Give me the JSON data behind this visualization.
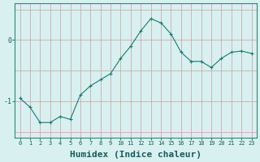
{
  "x": [
    0,
    1,
    2,
    3,
    4,
    5,
    6,
    7,
    8,
    9,
    10,
    11,
    12,
    13,
    14,
    15,
    16,
    17,
    18,
    19,
    20,
    21,
    22,
    23
  ],
  "y": [
    -0.95,
    -1.1,
    -1.35,
    -1.35,
    -1.25,
    -1.3,
    -0.9,
    -0.75,
    -0.65,
    -0.55,
    -0.3,
    -0.1,
    0.15,
    0.35,
    0.28,
    0.1,
    -0.2,
    -0.35,
    -0.35,
    -0.45,
    -0.3,
    -0.2,
    -0.18,
    -0.22
  ],
  "line_color": "#1a7a6e",
  "marker_color": "#1a7a6e",
  "bg_color": "#d8f0f0",
  "grid_color_v": "#c8a0a0",
  "grid_color_h": "#c8a0a0",
  "xlabel": "Humidex (Indice chaleur)",
  "xlabel_fontsize": 8,
  "yticks": [
    -1,
    0
  ],
  "ylim": [
    -1.6,
    0.6
  ],
  "xlim": [
    -0.5,
    23.5
  ],
  "title": ""
}
